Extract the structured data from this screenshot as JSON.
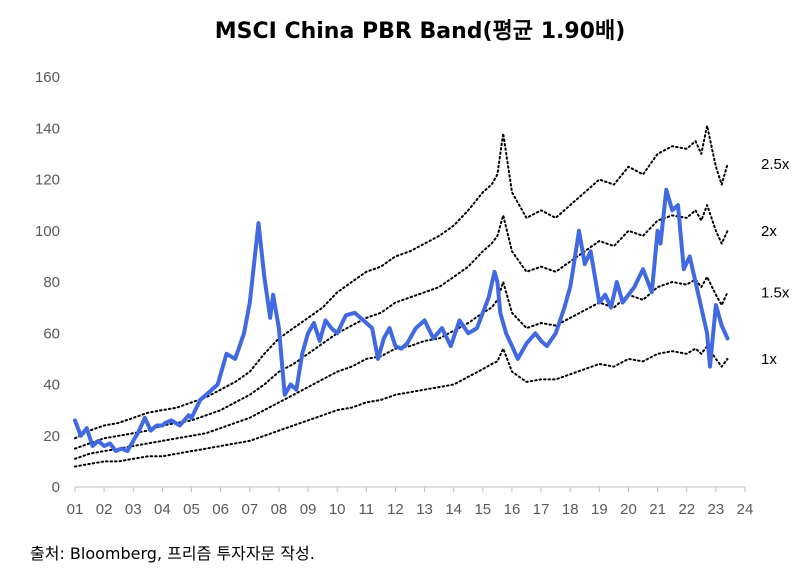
{
  "chart_data": {
    "type": "line",
    "title": "MSCI China PBR Band(평균 1.90배)",
    "source": "출처: Bloomberg, 프리즘 투자자문 작성.",
    "xlabel": "",
    "ylabel": "",
    "ylim": [
      0,
      160
    ],
    "yticks": [
      0,
      20,
      40,
      60,
      80,
      100,
      120,
      140,
      160
    ],
    "xlim": [
      2001,
      2024
    ],
    "xticks": [
      {
        "value": 2001,
        "label": "01"
      },
      {
        "value": 2002,
        "label": "02"
      },
      {
        "value": 2003,
        "label": "03"
      },
      {
        "value": 2004,
        "label": "04"
      },
      {
        "value": 2005,
        "label": "05"
      },
      {
        "value": 2006,
        "label": "06"
      },
      {
        "value": 2007,
        "label": "07"
      },
      {
        "value": 2008,
        "label": "08"
      },
      {
        "value": 2009,
        "label": "09"
      },
      {
        "value": 2010,
        "label": "10"
      },
      {
        "value": 2011,
        "label": "11"
      },
      {
        "value": 2012,
        "label": "12"
      },
      {
        "value": 2013,
        "label": "13"
      },
      {
        "value": 2014,
        "label": "14"
      },
      {
        "value": 2015,
        "label": "15"
      },
      {
        "value": 2016,
        "label": "16"
      },
      {
        "value": 2017,
        "label": "17"
      },
      {
        "value": 2018,
        "label": "18"
      },
      {
        "value": 2019,
        "label": "19"
      },
      {
        "value": 2020,
        "label": "20"
      },
      {
        "value": 2021,
        "label": "21"
      },
      {
        "value": 2022,
        "label": "22"
      },
      {
        "value": 2023,
        "label": "23"
      },
      {
        "value": 2024,
        "label": "24"
      }
    ],
    "grid": false,
    "legend": "none",
    "band_colors": "#000000",
    "main_color": "#4169E1",
    "series": [
      {
        "name": "MSCI China",
        "role": "main",
        "x": [
          2001.0,
          2001.2,
          2001.4,
          2001.6,
          2001.8,
          2002.0,
          2002.2,
          2002.4,
          2002.6,
          2002.8,
          2003.0,
          2003.2,
          2003.4,
          2003.6,
          2003.8,
          2004.0,
          2004.1,
          2004.3,
          2004.6,
          2004.9,
          2005.0,
          2005.3,
          2005.6,
          2005.9,
          2006.2,
          2006.5,
          2006.8,
          2007.0,
          2007.3,
          2007.5,
          2007.7,
          2007.8,
          2008.0,
          2008.2,
          2008.4,
          2008.6,
          2008.8,
          2009.0,
          2009.2,
          2009.4,
          2009.6,
          2009.8,
          2010.0,
          2010.3,
          2010.6,
          2010.9,
          2011.2,
          2011.4,
          2011.6,
          2011.8,
          2012.0,
          2012.2,
          2012.4,
          2012.7,
          2013.0,
          2013.3,
          2013.6,
          2013.9,
          2014.2,
          2014.5,
          2014.8,
          2015.0,
          2015.2,
          2015.4,
          2015.5,
          2015.6,
          2015.8,
          2016.0,
          2016.2,
          2016.5,
          2016.8,
          2017.0,
          2017.2,
          2017.5,
          2017.8,
          2018.0,
          2018.1,
          2018.3,
          2018.5,
          2018.7,
          2019.0,
          2019.2,
          2019.4,
          2019.6,
          2019.8,
          2020.0,
          2020.2,
          2020.5,
          2020.8,
          2021.0,
          2021.1,
          2021.3,
          2021.5,
          2021.7,
          2021.9,
          2022.1,
          2022.3,
          2022.5,
          2022.7,
          2022.8,
          2023.0,
          2023.2,
          2023.4
        ],
        "values": [
          26,
          20,
          23,
          16,
          18,
          16,
          17,
          14,
          15,
          14,
          18,
          22,
          27,
          22,
          24,
          24,
          25,
          26,
          24,
          28,
          27,
          34,
          37,
          40,
          52,
          50,
          60,
          72,
          103,
          82,
          66,
          75,
          62,
          36,
          40,
          38,
          52,
          60,
          64,
          57,
          65,
          62,
          60,
          67,
          68,
          65,
          62,
          50,
          58,
          62,
          55,
          54,
          56,
          62,
          65,
          58,
          62,
          55,
          65,
          60,
          62,
          68,
          74,
          84,
          80,
          68,
          60,
          55,
          50,
          56,
          60,
          57,
          55,
          60,
          70,
          78,
          85,
          100,
          87,
          92,
          72,
          75,
          70,
          80,
          72,
          75,
          78,
          85,
          76,
          100,
          95,
          116,
          108,
          110,
          85,
          90,
          80,
          70,
          60,
          47,
          71,
          63,
          58
        ]
      },
      {
        "name": "2.5x",
        "role": "band",
        "label": "2.5x",
        "x": [
          2001.0,
          2001.5,
          2002.0,
          2002.5,
          2003.0,
          2003.5,
          2004.0,
          2004.5,
          2005.0,
          2005.5,
          2006.0,
          2006.5,
          2007.0,
          2007.5,
          2008.0,
          2008.5,
          2009.0,
          2009.5,
          2010.0,
          2010.5,
          2011.0,
          2011.5,
          2012.0,
          2012.5,
          2013.0,
          2013.5,
          2014.0,
          2014.5,
          2015.0,
          2015.3,
          2015.5,
          2015.7,
          2016.0,
          2016.5,
          2017.0,
          2017.5,
          2018.0,
          2018.5,
          2019.0,
          2019.5,
          2020.0,
          2020.5,
          2021.0,
          2021.5,
          2022.0,
          2022.3,
          2022.5,
          2022.7,
          2023.0,
          2023.2,
          2023.4
        ],
        "values": [
          19,
          22,
          24,
          25,
          27,
          29,
          30,
          31,
          33,
          35,
          38,
          41,
          45,
          52,
          58,
          62,
          66,
          70,
          76,
          80,
          84,
          86,
          90,
          92,
          95,
          98,
          102,
          108,
          115,
          118,
          122,
          138,
          115,
          105,
          108,
          105,
          110,
          115,
          120,
          118,
          125,
          122,
          130,
          133,
          132,
          135,
          130,
          141,
          125,
          118,
          126
        ]
      },
      {
        "name": "2x",
        "role": "band",
        "label": "2x",
        "x": [
          2001.0,
          2001.5,
          2002.0,
          2002.5,
          2003.0,
          2003.5,
          2004.0,
          2004.5,
          2005.0,
          2005.5,
          2006.0,
          2006.5,
          2007.0,
          2007.5,
          2008.0,
          2008.5,
          2009.0,
          2009.5,
          2010.0,
          2010.5,
          2011.0,
          2011.5,
          2012.0,
          2012.5,
          2013.0,
          2013.5,
          2014.0,
          2014.5,
          2015.0,
          2015.3,
          2015.5,
          2015.7,
          2016.0,
          2016.5,
          2017.0,
          2017.5,
          2018.0,
          2018.5,
          2019.0,
          2019.5,
          2020.0,
          2020.5,
          2021.0,
          2021.5,
          2022.0,
          2022.3,
          2022.5,
          2022.7,
          2023.0,
          2023.2,
          2023.4
        ],
        "values": [
          15,
          17,
          19,
          20,
          21,
          22,
          24,
          25,
          26,
          28,
          30,
          33,
          36,
          40,
          45,
          48,
          52,
          56,
          60,
          63,
          66,
          68,
          72,
          74,
          76,
          78,
          82,
          86,
          92,
          95,
          98,
          106,
          92,
          84,
          86,
          84,
          88,
          92,
          96,
          94,
          100,
          98,
          104,
          106,
          105,
          108,
          104,
          110,
          100,
          95,
          100
        ]
      },
      {
        "name": "1.5x",
        "role": "band",
        "label": "1.5x",
        "x": [
          2001.0,
          2001.5,
          2002.0,
          2002.5,
          2003.0,
          2003.5,
          2004.0,
          2004.5,
          2005.0,
          2005.5,
          2006.0,
          2006.5,
          2007.0,
          2007.5,
          2008.0,
          2008.5,
          2009.0,
          2009.5,
          2010.0,
          2010.5,
          2011.0,
          2011.5,
          2012.0,
          2012.5,
          2013.0,
          2013.5,
          2014.0,
          2014.5,
          2015.0,
          2015.3,
          2015.5,
          2015.7,
          2016.0,
          2016.5,
          2017.0,
          2017.5,
          2018.0,
          2018.5,
          2019.0,
          2019.5,
          2020.0,
          2020.5,
          2021.0,
          2021.5,
          2022.0,
          2022.3,
          2022.5,
          2022.7,
          2023.0,
          2023.2,
          2023.4
        ],
        "values": [
          11,
          13,
          14,
          15,
          16,
          17,
          18,
          19,
          20,
          21,
          23,
          25,
          27,
          30,
          33,
          36,
          39,
          42,
          45,
          47,
          50,
          51,
          54,
          55,
          57,
          58,
          61,
          64,
          68,
          70,
          73,
          80,
          68,
          62,
          64,
          63,
          66,
          69,
          72,
          70,
          75,
          73,
          78,
          80,
          79,
          81,
          78,
          82,
          75,
          71,
          76
        ]
      },
      {
        "name": "1x",
        "role": "band",
        "label": "1x",
        "x": [
          2001.0,
          2001.5,
          2002.0,
          2002.5,
          2003.0,
          2003.5,
          2004.0,
          2004.5,
          2005.0,
          2005.5,
          2006.0,
          2006.5,
          2007.0,
          2007.5,
          2008.0,
          2008.5,
          2009.0,
          2009.5,
          2010.0,
          2010.5,
          2011.0,
          2011.5,
          2012.0,
          2012.5,
          2013.0,
          2013.5,
          2014.0,
          2014.5,
          2015.0,
          2015.3,
          2015.5,
          2015.7,
          2016.0,
          2016.5,
          2017.0,
          2017.5,
          2018.0,
          2018.5,
          2019.0,
          2019.5,
          2020.0,
          2020.5,
          2021.0,
          2021.5,
          2022.0,
          2022.3,
          2022.5,
          2022.7,
          2023.0,
          2023.2,
          2023.4
        ],
        "values": [
          8,
          9,
          10,
          10,
          11,
          12,
          12,
          13,
          14,
          15,
          16,
          17,
          18,
          20,
          22,
          24,
          26,
          28,
          30,
          31,
          33,
          34,
          36,
          37,
          38,
          39,
          40,
          43,
          46,
          48,
          49,
          54,
          45,
          41,
          42,
          42,
          44,
          46,
          48,
          47,
          50,
          49,
          52,
          53,
          52,
          54,
          52,
          55,
          50,
          47,
          50
        ]
      }
    ]
  }
}
